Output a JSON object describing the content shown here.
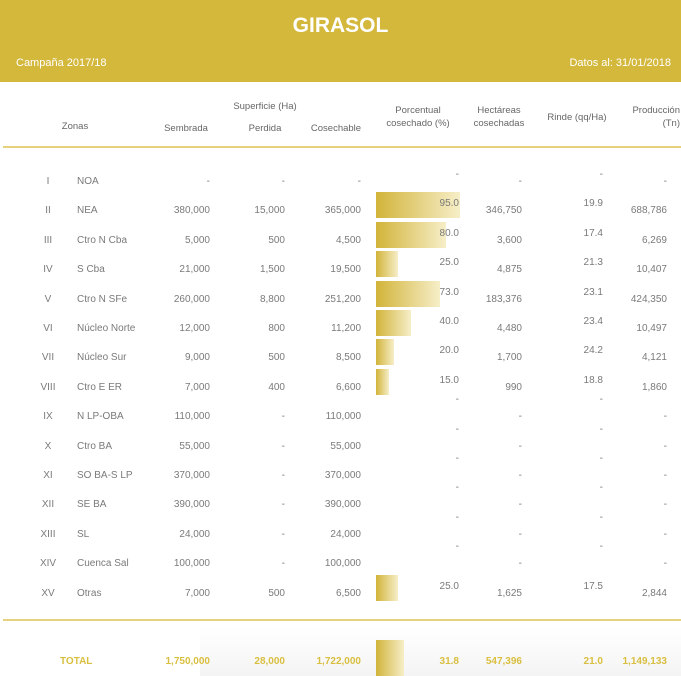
{
  "header": {
    "title": "GIRASOL",
    "campaign": "Campaña 2017/18",
    "date": "Datos al: 31/01/2018",
    "accent": "#d4b83c"
  },
  "columns": {
    "zonas": "Zonas",
    "superficie": "Superficie (Ha)",
    "sembrada": "Sembrada",
    "perdida": "Perdida",
    "cosechable": "Cosechable",
    "porcentual": "Porcentual cosechado (%)",
    "hectareas": "Hectáreas cosechadas",
    "rinde": "Rinde (qq/Ha)",
    "produccion": "Producción (Tn)"
  },
  "rows": [
    {
      "num": "I",
      "zona": "NOA",
      "sembrada": "-",
      "perdida": "-",
      "cosechable": "-",
      "pct": "-",
      "hect": "-",
      "rinde": "-",
      "prod": "-",
      "pct_value": 0
    },
    {
      "num": "II",
      "zona": "NEA",
      "sembrada": "380,000",
      "perdida": "15,000",
      "cosechable": "365,000",
      "pct": "95.0",
      "hect": "346,750",
      "rinde": "19.9",
      "prod": "688,786",
      "pct_value": 95
    },
    {
      "num": "III",
      "zona": "Ctro N Cba",
      "sembrada": "5,000",
      "perdida": "500",
      "cosechable": "4,500",
      "pct": "80.0",
      "hect": "3,600",
      "rinde": "17.4",
      "prod": "6,269",
      "pct_value": 80
    },
    {
      "num": "IV",
      "zona": "S Cba",
      "sembrada": "21,000",
      "perdida": "1,500",
      "cosechable": "19,500",
      "pct": "25.0",
      "hect": "4,875",
      "rinde": "21.3",
      "prod": "10,407",
      "pct_value": 25
    },
    {
      "num": "V",
      "zona": "Ctro N SFe",
      "sembrada": "260,000",
      "perdida": "8,800",
      "cosechable": "251,200",
      "pct": "73.0",
      "hect": "183,376",
      "rinde": "23.1",
      "prod": "424,350",
      "pct_value": 73
    },
    {
      "num": "VI",
      "zona": "Núcleo Norte",
      "sembrada": "12,000",
      "perdida": "800",
      "cosechable": "11,200",
      "pct": "40.0",
      "hect": "4,480",
      "rinde": "23.4",
      "prod": "10,497",
      "pct_value": 40
    },
    {
      "num": "VII",
      "zona": "Núcleo Sur",
      "sembrada": "9,000",
      "perdida": "500",
      "cosechable": "8,500",
      "pct": "20.0",
      "hect": "1,700",
      "rinde": "24.2",
      "prod": "4,121",
      "pct_value": 20
    },
    {
      "num": "VIII",
      "zona": "Ctro E ER",
      "sembrada": "7,000",
      "perdida": "400",
      "cosechable": "6,600",
      "pct": "15.0",
      "hect": "990",
      "rinde": "18.8",
      "prod": "1,860",
      "pct_value": 15
    },
    {
      "num": "IX",
      "zona": "N LP-OBA",
      "sembrada": "110,000",
      "perdida": "-",
      "cosechable": "110,000",
      "pct": "-",
      "hect": "-",
      "rinde": "-",
      "prod": "-",
      "pct_value": 0
    },
    {
      "num": "X",
      "zona": "Ctro BA",
      "sembrada": "55,000",
      "perdida": "-",
      "cosechable": "55,000",
      "pct": "-",
      "hect": "-",
      "rinde": "-",
      "prod": "-",
      "pct_value": 0
    },
    {
      "num": "XI",
      "zona": "SO BA-S LP",
      "sembrada": "370,000",
      "perdida": "-",
      "cosechable": "370,000",
      "pct": "-",
      "hect": "-",
      "rinde": "-",
      "prod": "-",
      "pct_value": 0
    },
    {
      "num": "XII",
      "zona": "SE BA",
      "sembrada": "390,000",
      "perdida": "-",
      "cosechable": "390,000",
      "pct": "-",
      "hect": "-",
      "rinde": "-",
      "prod": "-",
      "pct_value": 0
    },
    {
      "num": "XIII",
      "zona": "SL",
      "sembrada": "24,000",
      "perdida": "-",
      "cosechable": "24,000",
      "pct": "-",
      "hect": "-",
      "rinde": "-",
      "prod": "-",
      "pct_value": 0
    },
    {
      "num": "XIV",
      "zona": "Cuenca Sal",
      "sembrada": "100,000",
      "perdida": "-",
      "cosechable": "100,000",
      "pct": "-",
      "hect": "-",
      "rinde": "-",
      "prod": "-",
      "pct_value": 0
    },
    {
      "num": "XV",
      "zona": "Otras",
      "sembrada": "7,000",
      "perdida": "500",
      "cosechable": "6,500",
      "pct": "25.0",
      "hect": "1,625",
      "rinde": "17.5",
      "prod": "2,844",
      "pct_value": 25
    }
  ],
  "total": {
    "label": "TOTAL",
    "sembrada": "1,750,000",
    "perdida": "28,000",
    "cosechable": "1,722,000",
    "pct": "31.8",
    "hect": "547,396",
    "rinde": "21.0",
    "prod": "1,149,133",
    "pct_value": 31.8
  }
}
